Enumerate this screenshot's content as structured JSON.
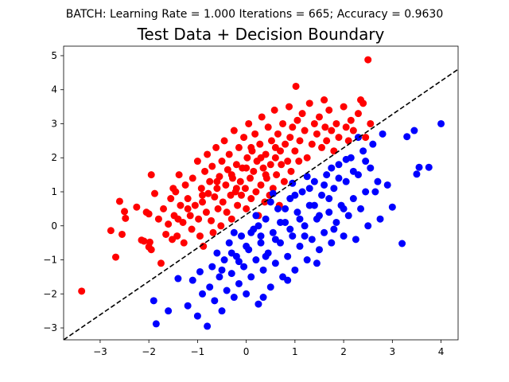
{
  "figure": {
    "suptitle": "BATCH: Learning Rate = 1.000 Iterations = 665; Accuracy = 0.9630"
  },
  "chart_data": {
    "type": "scatter",
    "title": "Test Data + Decision Boundary",
    "xlabel": "",
    "ylabel": "",
    "xlim": [
      -3.75,
      4.35
    ],
    "ylim": [
      -3.35,
      5.28
    ],
    "xticks": [
      -3,
      -2,
      -1,
      0,
      1,
      2,
      3,
      4
    ],
    "yticks": [
      -3,
      -2,
      -1,
      0,
      1,
      2,
      3,
      4,
      5
    ],
    "grid": false,
    "legend": "none",
    "decision_boundary": {
      "style": "dashed",
      "color": "#000000",
      "points": [
        [
          -3.75,
          -3.35
        ],
        [
          4.35,
          4.6
        ]
      ]
    },
    "series": [
      {
        "color": "#ff0000",
        "points": [
          [
            -3.38,
            -1.92
          ],
          [
            -2.78,
            -0.14
          ],
          [
            -2.68,
            -0.92
          ],
          [
            -2.6,
            0.72
          ],
          [
            -2.55,
            -0.25
          ],
          [
            -2.5,
            0.42
          ],
          [
            -2.48,
            0.22
          ],
          [
            -2.25,
            0.55
          ],
          [
            -2.15,
            -0.42
          ],
          [
            -2.1,
            -0.45
          ],
          [
            -2.0,
            -0.62
          ],
          [
            -1.98,
            -0.48
          ],
          [
            -1.95,
            -0.7
          ],
          [
            -2.0,
            0.35
          ],
          [
            -2.05,
            0.4
          ],
          [
            -1.95,
            1.5
          ],
          [
            -1.88,
            0.95
          ],
          [
            -1.8,
            0.2
          ],
          [
            -1.75,
            -1.1
          ],
          [
            -1.7,
            0.5
          ],
          [
            -1.65,
            -0.25
          ],
          [
            -1.6,
            0.05
          ],
          [
            -1.55,
            0.8
          ],
          [
            -1.52,
            -0.4
          ],
          [
            -1.5,
            1.1
          ],
          [
            -1.48,
            0.3
          ],
          [
            -1.45,
            1.0
          ],
          [
            -1.42,
            -0.3
          ],
          [
            -1.4,
            0.2
          ],
          [
            -1.38,
            1.5
          ],
          [
            -1.35,
            0.6
          ],
          [
            -1.3,
            0.1
          ],
          [
            -1.28,
            -0.5
          ],
          [
            -1.25,
            1.2
          ],
          [
            -1.2,
            0.8
          ],
          [
            -1.15,
            0.3
          ],
          [
            -1.12,
            -0.1
          ],
          [
            -1.1,
            1.4
          ],
          [
            -1.05,
            0.6
          ],
          [
            -1.0,
            1.9
          ],
          [
            -0.98,
            0.2
          ],
          [
            -0.95,
            -0.3
          ],
          [
            -0.92,
            1.1
          ],
          [
            -0.9,
            0.7
          ],
          [
            -0.88,
            -0.6
          ],
          [
            -0.85,
            1.6
          ],
          [
            -0.82,
            0.4
          ],
          [
            -0.8,
            2.1
          ],
          [
            -0.78,
            0.95
          ],
          [
            -0.75,
            1.3
          ],
          [
            -0.72,
            0.15
          ],
          [
            -0.7,
            1.75
          ],
          [
            -0.68,
            -0.2
          ],
          [
            -0.65,
            0.85
          ],
          [
            -0.62,
            2.3
          ],
          [
            -0.6,
            1.1
          ],
          [
            -0.58,
            0.5
          ],
          [
            -0.55,
            1.45
          ],
          [
            -0.52,
            0.0
          ],
          [
            -0.5,
            1.9
          ],
          [
            -0.48,
            0.7
          ],
          [
            -0.45,
            2.5
          ],
          [
            -0.42,
            1.2
          ],
          [
            -0.4,
            0.4
          ],
          [
            -0.38,
            1.65
          ],
          [
            -0.35,
            2.1
          ],
          [
            -0.32,
            0.9
          ],
          [
            -0.3,
            0.2
          ],
          [
            -0.28,
            1.4
          ],
          [
            -0.25,
            2.8
          ],
          [
            -0.22,
            1.0
          ],
          [
            -0.2,
            1.8
          ],
          [
            -0.18,
            0.6
          ],
          [
            -0.15,
            2.3
          ],
          [
            -0.12,
            1.3
          ],
          [
            -0.1,
            0.9
          ],
          [
            -0.08,
            1.7
          ],
          [
            -0.05,
            2.6
          ],
          [
            -0.02,
            1.1
          ],
          [
            0.0,
            0.5
          ],
          [
            0.02,
            2.0
          ],
          [
            0.05,
            3.0
          ],
          [
            0.08,
            1.4
          ],
          [
            0.1,
            0.8
          ],
          [
            0.12,
            2.2
          ],
          [
            0.15,
            1.6
          ],
          [
            0.18,
            2.7
          ],
          [
            0.2,
            1.0
          ],
          [
            0.22,
            1.9
          ],
          [
            0.25,
            0.3
          ],
          [
            0.28,
            2.4
          ],
          [
            0.3,
            1.2
          ],
          [
            0.32,
            3.2
          ],
          [
            0.35,
            1.7
          ],
          [
            0.38,
            0.7
          ],
          [
            0.4,
            2.1
          ],
          [
            0.42,
            1.4
          ],
          [
            0.45,
            2.9
          ],
          [
            0.48,
            0.9
          ],
          [
            0.5,
            1.8
          ],
          [
            0.52,
            2.5
          ],
          [
            0.55,
            1.1
          ],
          [
            0.58,
            3.4
          ],
          [
            0.6,
            2.0
          ],
          [
            0.62,
            1.5
          ],
          [
            0.65,
            2.7
          ],
          [
            0.68,
            0.6
          ],
          [
            0.7,
            2.2
          ],
          [
            0.72,
            1.8
          ],
          [
            0.75,
            3.0
          ],
          [
            0.78,
            1.3
          ],
          [
            0.8,
            2.4
          ],
          [
            0.85,
            1.9
          ],
          [
            0.88,
            3.5
          ],
          [
            0.9,
            2.6
          ],
          [
            0.92,
            1.6
          ],
          [
            0.95,
            2.9
          ],
          [
            1.0,
            2.2
          ],
          [
            1.02,
            4.1
          ],
          [
            1.05,
            3.1
          ],
          [
            1.08,
            1.9
          ],
          [
            1.1,
            2.5
          ],
          [
            1.15,
            3.3
          ],
          [
            1.2,
            2.8
          ],
          [
            1.25,
            2.0
          ],
          [
            1.3,
            3.6
          ],
          [
            1.35,
            2.4
          ],
          [
            1.4,
            3.0
          ],
          [
            1.45,
            2.7
          ],
          [
            1.5,
            3.2
          ],
          [
            1.55,
            2.3
          ],
          [
            1.6,
            3.7
          ],
          [
            1.62,
            2.9
          ],
          [
            1.65,
            2.5
          ],
          [
            1.7,
            3.4
          ],
          [
            1.75,
            2.8
          ],
          [
            1.8,
            2.2
          ],
          [
            1.85,
            3.0
          ],
          [
            1.9,
            2.6
          ],
          [
            2.0,
            3.5
          ],
          [
            2.05,
            2.9
          ],
          [
            2.1,
            2.5
          ],
          [
            2.15,
            3.1
          ],
          [
            2.2,
            2.8
          ],
          [
            2.3,
            3.3
          ],
          [
            2.35,
            3.7
          ],
          [
            2.4,
            3.6
          ],
          [
            2.5,
            4.88
          ],
          [
            2.55,
            3.0
          ],
          [
            2.45,
            2.6
          ],
          [
            -0.6,
            1.3
          ],
          [
            -0.3,
            1.5
          ],
          [
            0.0,
            1.7
          ],
          [
            0.3,
            2.0
          ],
          [
            0.6,
            2.3
          ],
          [
            -1.2,
            0.5
          ],
          [
            -0.9,
            0.9
          ],
          [
            0.1,
            2.3
          ],
          [
            0.4,
            1.5
          ],
          [
            -0.2,
            1.1
          ]
        ]
      },
      {
        "color": "#0000ff",
        "points": [
          [
            -1.9,
            -2.2
          ],
          [
            -1.85,
            -2.88
          ],
          [
            -1.6,
            -2.5
          ],
          [
            -1.4,
            -1.55
          ],
          [
            -1.2,
            -2.35
          ],
          [
            -1.1,
            -1.6
          ],
          [
            -1.0,
            -2.65
          ],
          [
            -0.9,
            -2.0
          ],
          [
            -0.8,
            -2.95
          ],
          [
            -0.75,
            -1.8
          ],
          [
            -0.7,
            -1.2
          ],
          [
            -0.65,
            -2.2
          ],
          [
            -0.6,
            -0.8
          ],
          [
            -0.55,
            -1.5
          ],
          [
            -0.5,
            -2.5
          ],
          [
            -0.45,
            -1.0
          ],
          [
            -0.4,
            -1.9
          ],
          [
            -0.35,
            -0.5
          ],
          [
            -0.3,
            -1.4
          ],
          [
            -0.25,
            -2.1
          ],
          [
            -0.2,
            -0.9
          ],
          [
            -0.15,
            -1.7
          ],
          [
            -0.1,
            -0.3
          ],
          [
            -0.05,
            -1.2
          ],
          [
            0.0,
            -2.0
          ],
          [
            0.05,
            -0.7
          ],
          [
            0.1,
            -1.5
          ],
          [
            0.15,
            -0.1
          ],
          [
            0.2,
            -1.0
          ],
          [
            0.25,
            -2.3
          ],
          [
            0.3,
            -0.5
          ],
          [
            0.35,
            -1.3
          ],
          [
            0.4,
            0.2
          ],
          [
            0.45,
            -0.8
          ],
          [
            0.5,
            -1.8
          ],
          [
            0.55,
            -0.2
          ],
          [
            0.6,
            -1.1
          ],
          [
            0.65,
            0.5
          ],
          [
            0.7,
            -0.5
          ],
          [
            0.75,
            -1.5
          ],
          [
            0.8,
            0.1
          ],
          [
            0.85,
            -0.9
          ],
          [
            0.9,
            0.8
          ],
          [
            0.95,
            -0.3
          ],
          [
            1.0,
            -1.3
          ],
          [
            1.05,
            0.4
          ],
          [
            1.1,
            -0.6
          ],
          [
            1.15,
            1.0
          ],
          [
            1.2,
            0.0
          ],
          [
            1.25,
            -1.0
          ],
          [
            1.3,
            0.6
          ],
          [
            1.35,
            -0.4
          ],
          [
            1.4,
            1.3
          ],
          [
            1.45,
            0.2
          ],
          [
            1.5,
            -0.7
          ],
          [
            1.55,
            0.9
          ],
          [
            1.6,
            -0.2
          ],
          [
            1.65,
            1.5
          ],
          [
            1.7,
            0.4
          ],
          [
            1.75,
            -0.5
          ],
          [
            1.8,
            1.1
          ],
          [
            1.85,
            0.1
          ],
          [
            1.9,
            1.8
          ],
          [
            1.95,
            0.6
          ],
          [
            2.0,
            -0.3
          ],
          [
            2.05,
            1.3
          ],
          [
            2.1,
            0.3
          ],
          [
            2.15,
            2.0
          ],
          [
            2.2,
            0.8
          ],
          [
            2.25,
            -0.4
          ],
          [
            2.3,
            1.5
          ],
          [
            2.35,
            0.5
          ],
          [
            2.4,
            2.2
          ],
          [
            2.45,
            1.0
          ],
          [
            2.5,
            0.0
          ],
          [
            2.55,
            1.7
          ],
          [
            2.6,
            2.4
          ],
          [
            2.7,
            1.3
          ],
          [
            2.8,
            2.7
          ],
          [
            2.9,
            1.2
          ],
          [
            3.0,
            0.55
          ],
          [
            3.2,
            -0.52
          ],
          [
            3.3,
            2.62
          ],
          [
            3.45,
            2.8
          ],
          [
            3.5,
            1.52
          ],
          [
            3.55,
            1.72
          ],
          [
            3.75,
            1.72
          ],
          [
            4.0,
            3.0
          ],
          [
            0.2,
            0.3
          ],
          [
            0.5,
            0.7
          ],
          [
            0.8,
            0.5
          ],
          [
            1.0,
            0.9
          ],
          [
            1.3,
            1.1
          ],
          [
            1.6,
            1.2
          ],
          [
            1.9,
            1.4
          ],
          [
            2.2,
            1.6
          ],
          [
            0.3,
            -0.3
          ],
          [
            0.7,
            0.1
          ],
          [
            1.1,
            0.2
          ],
          [
            1.5,
            0.3
          ],
          [
            0.0,
            -0.6
          ],
          [
            0.4,
            -0.9
          ],
          [
            0.9,
            -0.1
          ],
          [
            1.2,
            -0.3
          ],
          [
            -0.3,
            -0.8
          ],
          [
            0.6,
            -0.4
          ],
          [
            1.7,
            0.8
          ],
          [
            2.0,
            0.5
          ],
          [
            1.4,
            0.6
          ],
          [
            1.8,
            -0.1
          ],
          [
            0.1,
            -0.2
          ],
          [
            -0.5,
            -1.3
          ],
          [
            2.75,
            0.2
          ],
          [
            2.65,
            1.0
          ],
          [
            1.45,
            -1.1
          ],
          [
            0.85,
            -1.6
          ],
          [
            0.35,
            -2.1
          ],
          [
            -0.95,
            -1.35
          ],
          [
            -0.15,
            -1.05
          ],
          [
            2.3,
            2.6
          ],
          [
            2.05,
            1.95
          ],
          [
            1.25,
            1.45
          ],
          [
            0.95,
            1.25
          ],
          [
            0.55,
            0.95
          ],
          [
            1.75,
            1.7
          ],
          [
            2.45,
            1.9
          ],
          [
            0.25,
            0.0
          ],
          [
            -0.25,
            -0.2
          ]
        ]
      }
    ]
  }
}
